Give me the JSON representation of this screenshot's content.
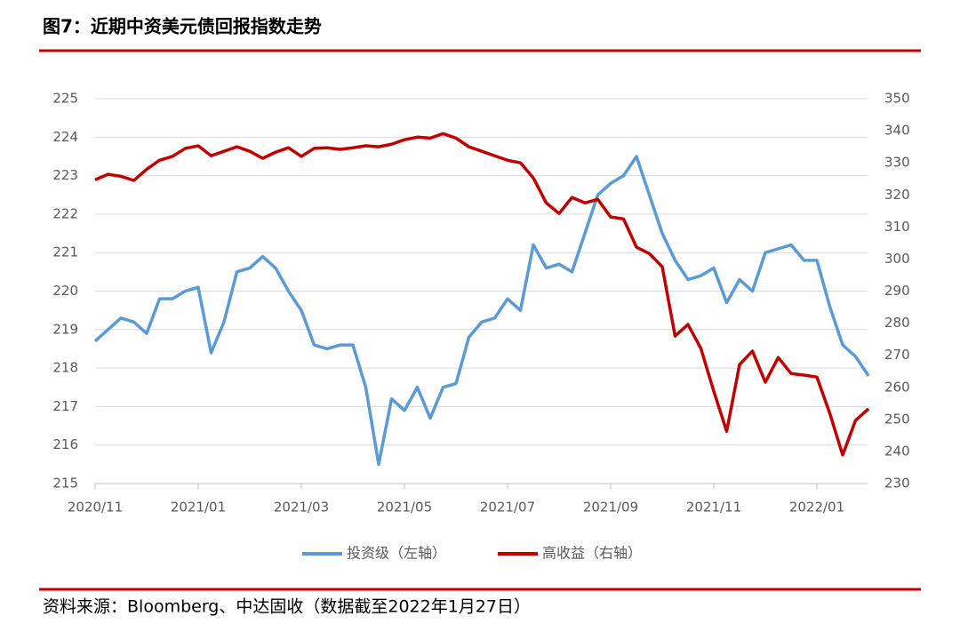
{
  "chart_data": {
    "type": "line",
    "title": "图7：近期中资美元债回报指数走势",
    "source": "资料来源：Bloomberg、中达固收（数据截至2022年1月27日）",
    "categories": [
      "2020/11",
      null,
      null,
      null,
      null,
      null,
      null,
      null,
      "2021/01",
      null,
      null,
      null,
      null,
      null,
      null,
      null,
      "2021/03",
      null,
      null,
      null,
      null,
      null,
      null,
      null,
      "2021/05",
      null,
      null,
      null,
      null,
      null,
      null,
      null,
      "2021/07",
      null,
      null,
      null,
      null,
      null,
      null,
      null,
      "2021/09",
      null,
      null,
      null,
      null,
      null,
      null,
      null,
      "2021/11",
      null,
      null,
      null,
      null,
      null,
      null,
      null,
      "2022/01",
      null,
      null,
      null,
      null
    ],
    "series": [
      {
        "name": "投资级（左轴）",
        "color": "#5b9bd5",
        "axis": "y",
        "values": [
          218.7,
          219.0,
          219.3,
          219.2,
          218.9,
          219.8,
          219.8,
          220.0,
          220.1,
          218.4,
          219.2,
          220.5,
          220.6,
          220.9,
          220.6,
          220.0,
          219.5,
          218.6,
          218.5,
          218.6,
          218.6,
          217.5,
          215.5,
          217.2,
          216.9,
          217.5,
          216.7,
          217.5,
          217.6,
          218.8,
          219.2,
          219.3,
          219.8,
          219.5,
          221.2,
          220.6,
          220.7,
          220.5,
          221.5,
          222.5,
          222.8,
          223.0,
          223.5,
          222.5,
          221.5,
          220.8,
          220.3,
          220.4,
          220.6,
          219.7,
          220.3,
          220.0,
          221.0,
          221.1,
          221.2,
          220.8,
          220.8,
          219.6,
          218.6,
          218.3,
          217.8
        ]
      },
      {
        "name": "高收益（右轴）",
        "color": "#c00000",
        "axis": "y2",
        "values": [
          324.7,
          326.4,
          325.8,
          324.5,
          328,
          330.8,
          332,
          334.5,
          335.3,
          332.2,
          333.6,
          335,
          333.6,
          331.4,
          333.3,
          334.7,
          332,
          334.5,
          334.7,
          334.2,
          334.7,
          335.3,
          335,
          335.8,
          337.2,
          338,
          337.7,
          339.1,
          337.7,
          335,
          333.6,
          332.2,
          330.8,
          330,
          325.3,
          317.5,
          314.2,
          319.2,
          317.5,
          318.6,
          313.1,
          312.5,
          303.7,
          301.7,
          297.6,
          276,
          279.6,
          272.1,
          258.8,
          246.3,
          267.1,
          271.3,
          261.6,
          269.3,
          264.3,
          263.8,
          263.2,
          251.9,
          238.9,
          249.7,
          253.3
        ]
      }
    ],
    "ylim": [
      215,
      225
    ],
    "yticks": [
      215,
      216,
      217,
      218,
      219,
      220,
      221,
      222,
      223,
      224,
      225
    ],
    "y2lim": [
      230,
      350
    ],
    "y2ticks": [
      230,
      240,
      250,
      260,
      270,
      280,
      290,
      300,
      310,
      320,
      330,
      340,
      350
    ],
    "grid": true
  }
}
